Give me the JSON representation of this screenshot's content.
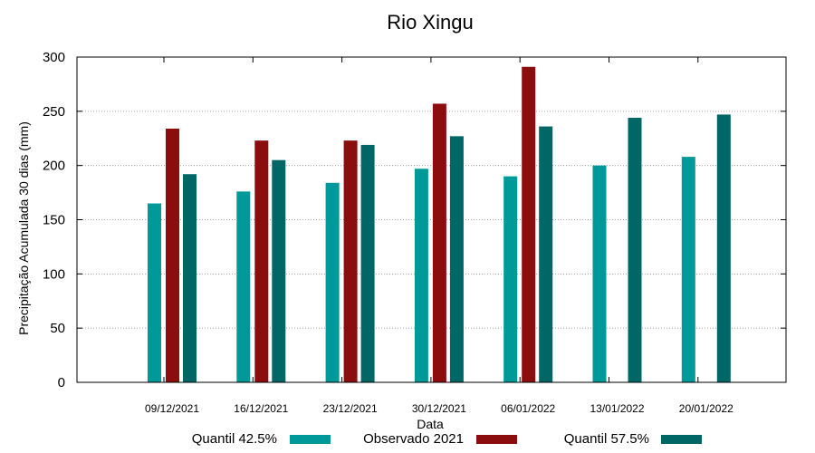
{
  "chart_data": {
    "type": "bar",
    "title": "Rio Xingu",
    "xlabel": "Data",
    "ylabel": "Precipitação Acumulada 30 dias (mm)",
    "ylim": [
      0,
      300
    ],
    "yticks": [
      0,
      50,
      100,
      150,
      200,
      250,
      300
    ],
    "grid": true,
    "legend_position": "bottom",
    "categories": [
      "09/12/2021",
      "16/12/2021",
      "23/12/2021",
      "30/12/2021",
      "06/01/2022",
      "13/01/2022",
      "20/01/2022"
    ],
    "series": [
      {
        "name": "Quantil 42.5%",
        "color": "#009999",
        "values": [
          165,
          176,
          184,
          197,
          190,
          200,
          208
        ]
      },
      {
        "name": "Observado 2021",
        "color": "#8b0d0d",
        "values": [
          234,
          223,
          223,
          257,
          291,
          null,
          null
        ]
      },
      {
        "name": "Quantil 57.5%",
        "color": "#006666",
        "values": [
          192,
          205,
          219,
          227,
          236,
          244,
          247
        ]
      }
    ]
  }
}
